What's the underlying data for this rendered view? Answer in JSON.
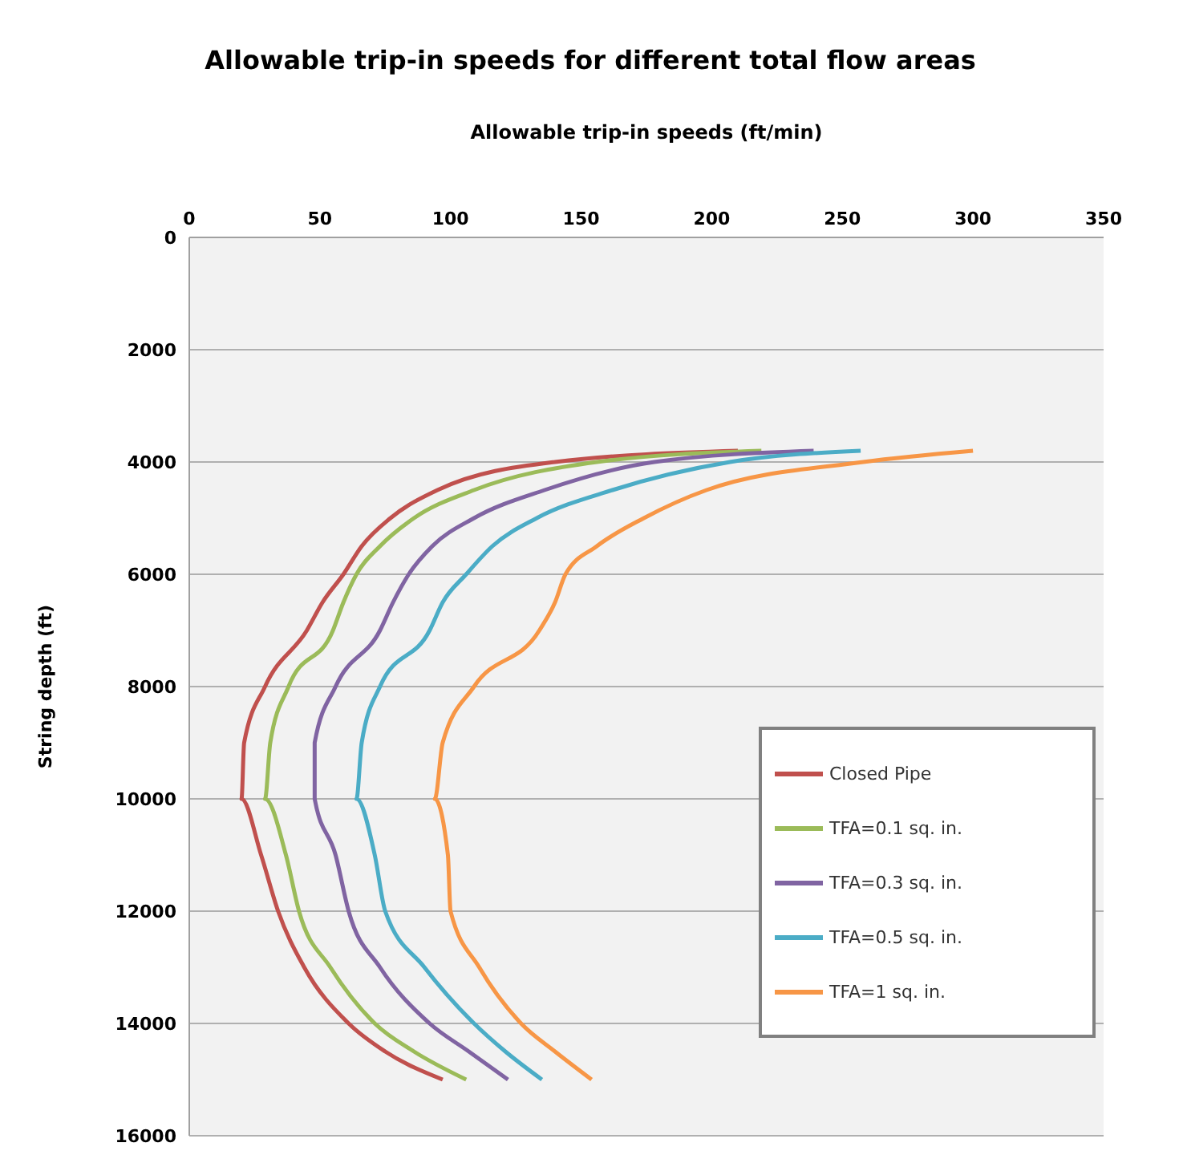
{
  "chart_data": {
    "type": "line",
    "title": "Allowable trip-in speeds for different total flow areas",
    "xlabel": "Allowable trip-in speeds (ft/min)",
    "ylabel": "String depth (ft)",
    "xlim": [
      0,
      350
    ],
    "xticks": [
      0,
      50,
      100,
      150,
      200,
      250,
      300,
      350
    ],
    "ylim": [
      16000,
      0
    ],
    "yticks": [
      0,
      2000,
      4000,
      6000,
      8000,
      10000,
      12000,
      14000,
      16000
    ],
    "grid": "y",
    "legend": "right",
    "marker": "none",
    "line_style": "solid",
    "series": [
      {
        "name": "Closed Pipe",
        "color": "#c0504d",
        "x": [
          210,
          140,
          95,
          77,
          66,
          59,
          51,
          45,
          29,
          21,
          20,
          27.5,
          34,
          44,
          61,
          75,
          97
        ],
        "values": [
          3800,
          4000,
          4500,
          5000,
          5500,
          6000,
          6500,
          7000,
          8000,
          9000,
          10000,
          11000,
          12000,
          13000,
          14000,
          14500,
          15000
        ]
      },
      {
        "name": "TFA=0.1 sq. in.",
        "color": "#9bbb59",
        "x": [
          219,
          156,
          109,
          86,
          73,
          64,
          59,
          55,
          38,
          31,
          29,
          37,
          42,
          54,
          71,
          86,
          106
        ],
        "values": [
          3800,
          4000,
          4500,
          5000,
          5500,
          6000,
          6500,
          7000,
          8000,
          9000,
          10000,
          11000,
          12000,
          13000,
          14000,
          14500,
          15000
        ]
      },
      {
        "name": "TFA=0.3 sq. in.",
        "color": "#8064a2",
        "x": [
          239,
          178,
          136,
          109,
          93,
          84,
          78,
          73,
          56,
          48,
          48,
          56,
          61,
          73,
          92,
          107,
          122
        ],
        "values": [
          3800,
          4000,
          4500,
          5000,
          5500,
          6000,
          6500,
          7000,
          8000,
          9000,
          10000,
          11000,
          12000,
          13000,
          14000,
          14500,
          15000
        ]
      },
      {
        "name": "TFA=0.5 sq. in.",
        "color": "#4bacc6",
        "x": [
          257,
          207,
          162,
          133,
          116,
          106,
          97,
          92,
          73,
          66,
          64,
          71,
          75,
          90,
          109,
          121,
          135
        ],
        "values": [
          3800,
          4000,
          4500,
          5000,
          5500,
          6000,
          6500,
          7000,
          8000,
          9000,
          10000,
          11000,
          12000,
          13000,
          14000,
          14500,
          15000
        ]
      },
      {
        "name": "TFA=1 sq. in.",
        "color": "#f79646",
        "x": [
          300,
          258,
          198,
          174,
          156,
          144,
          140,
          134,
          109,
          97,
          94,
          99,
          100,
          111,
          127,
          140,
          154
        ],
        "values": [
          3800,
          4000,
          4500,
          5000,
          5500,
          6000,
          6500,
          7000,
          8000,
          9000,
          10000,
          11000,
          12000,
          13000,
          14000,
          14500,
          15000
        ]
      }
    ]
  }
}
